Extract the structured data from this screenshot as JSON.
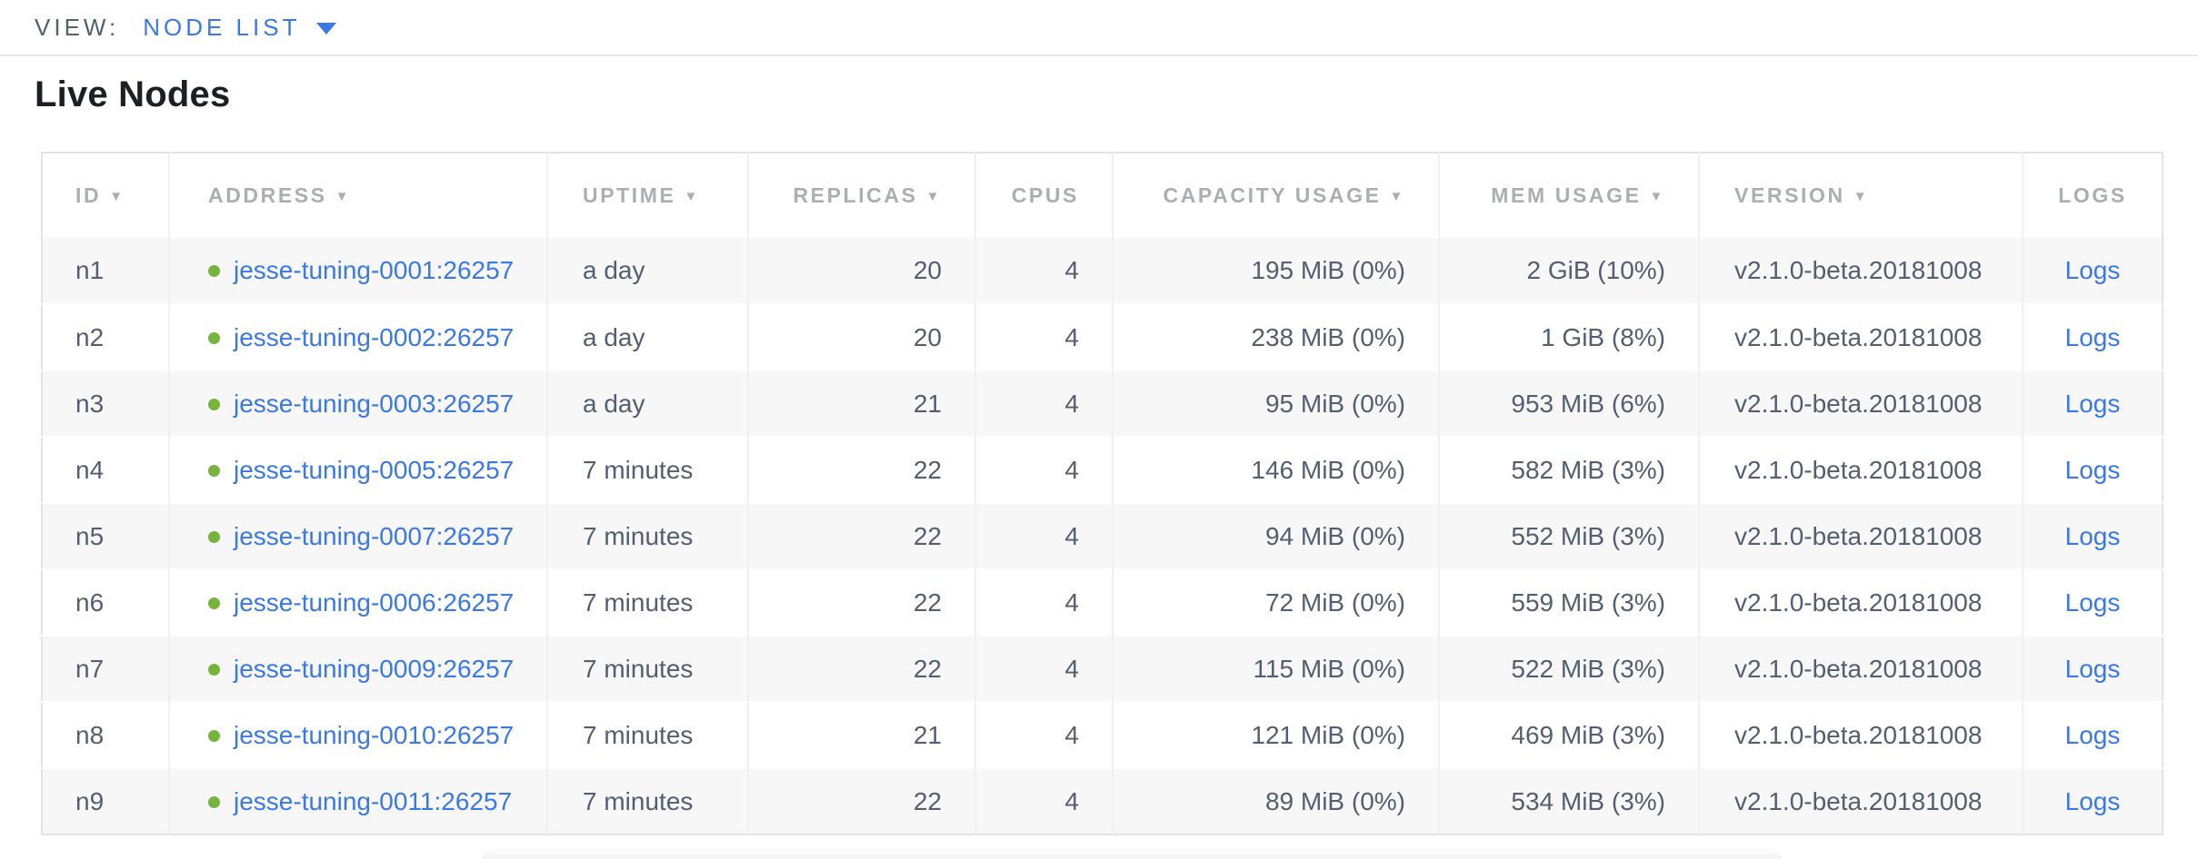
{
  "view_bar": {
    "label": "VIEW:",
    "selected": "NODE LIST"
  },
  "page": {
    "title": "Live Nodes"
  },
  "icons": {
    "sort_desc": "▼",
    "caret_down": "▼",
    "live_status_dot": "●"
  },
  "colors": {
    "link_blue": "#3b78e7",
    "live_green": "#77b43c",
    "header_text": "#abaeb3",
    "cell_text": "#535f70",
    "title_text": "#1c1f23",
    "view_label_text": "#566069",
    "zebra_row_bg": "#f7f7f7",
    "table_border": "#e3e3e3"
  },
  "table": {
    "columns": [
      {
        "key": "id",
        "label": "ID",
        "sortable": true
      },
      {
        "key": "address",
        "label": "ADDRESS",
        "sortable": true
      },
      {
        "key": "uptime",
        "label": "UPTIME",
        "sortable": true
      },
      {
        "key": "replicas",
        "label": "REPLICAS",
        "sortable": true
      },
      {
        "key": "cpus",
        "label": "CPUS",
        "sortable": false
      },
      {
        "key": "capacity",
        "label": "CAPACITY USAGE",
        "sortable": true
      },
      {
        "key": "mem",
        "label": "MEM USAGE",
        "sortable": true
      },
      {
        "key": "version",
        "label": "VERSION",
        "sortable": true
      },
      {
        "key": "logs",
        "label": "LOGS",
        "sortable": false
      }
    ],
    "rows": [
      {
        "id": "n1",
        "status": "live",
        "address": "jesse-tuning-0001:26257",
        "uptime": "a day",
        "replicas": "20",
        "cpus": "4",
        "capacity": "195 MiB (0%)",
        "mem": "2 GiB (10%)",
        "version": "v2.1.0-beta.20181008",
        "logs": "Logs"
      },
      {
        "id": "n2",
        "status": "live",
        "address": "jesse-tuning-0002:26257",
        "uptime": "a day",
        "replicas": "20",
        "cpus": "4",
        "capacity": "238 MiB (0%)",
        "mem": "1 GiB (8%)",
        "version": "v2.1.0-beta.20181008",
        "logs": "Logs"
      },
      {
        "id": "n3",
        "status": "live",
        "address": "jesse-tuning-0003:26257",
        "uptime": "a day",
        "replicas": "21",
        "cpus": "4",
        "capacity": "95 MiB (0%)",
        "mem": "953 MiB (6%)",
        "version": "v2.1.0-beta.20181008",
        "logs": "Logs"
      },
      {
        "id": "n4",
        "status": "live",
        "address": "jesse-tuning-0005:26257",
        "uptime": "7 minutes",
        "replicas": "22",
        "cpus": "4",
        "capacity": "146 MiB (0%)",
        "mem": "582 MiB (3%)",
        "version": "v2.1.0-beta.20181008",
        "logs": "Logs"
      },
      {
        "id": "n5",
        "status": "live",
        "address": "jesse-tuning-0007:26257",
        "uptime": "7 minutes",
        "replicas": "22",
        "cpus": "4",
        "capacity": "94 MiB (0%)",
        "mem": "552 MiB (3%)",
        "version": "v2.1.0-beta.20181008",
        "logs": "Logs"
      },
      {
        "id": "n6",
        "status": "live",
        "address": "jesse-tuning-0006:26257",
        "uptime": "7 minutes",
        "replicas": "22",
        "cpus": "4",
        "capacity": "72 MiB (0%)",
        "mem": "559 MiB (3%)",
        "version": "v2.1.0-beta.20181008",
        "logs": "Logs"
      },
      {
        "id": "n7",
        "status": "live",
        "address": "jesse-tuning-0009:26257",
        "uptime": "7 minutes",
        "replicas": "22",
        "cpus": "4",
        "capacity": "115 MiB (0%)",
        "mem": "522 MiB (3%)",
        "version": "v2.1.0-beta.20181008",
        "logs": "Logs"
      },
      {
        "id": "n8",
        "status": "live",
        "address": "jesse-tuning-0010:26257",
        "uptime": "7 minutes",
        "replicas": "21",
        "cpus": "4",
        "capacity": "121 MiB (0%)",
        "mem": "469 MiB (3%)",
        "version": "v2.1.0-beta.20181008",
        "logs": "Logs"
      },
      {
        "id": "n9",
        "status": "live",
        "address": "jesse-tuning-0011:26257",
        "uptime": "7 minutes",
        "replicas": "22",
        "cpus": "4",
        "capacity": "89 MiB (0%)",
        "mem": "534 MiB (3%)",
        "version": "v2.1.0-beta.20181008",
        "logs": "Logs"
      }
    ]
  }
}
